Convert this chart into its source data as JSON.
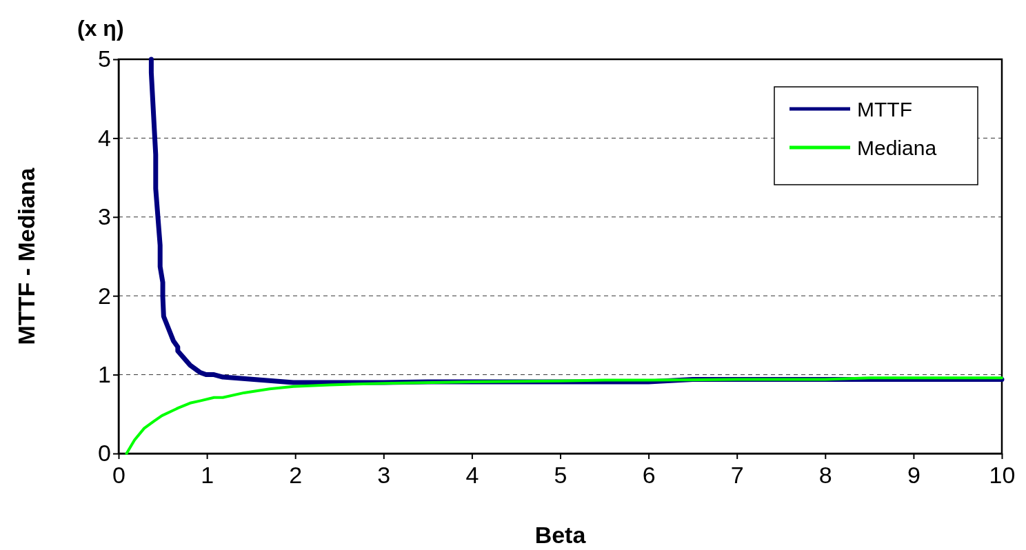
{
  "chart_data": {
    "type": "line",
    "xlabel": "Beta",
    "ylabel": "MTTF - Mediana",
    "annotations": [
      "(x η)"
    ],
    "xlim": [
      0,
      10
    ],
    "ylim": [
      0,
      5
    ],
    "xticks": [
      0,
      1,
      2,
      3,
      4,
      5,
      6,
      7,
      8,
      9,
      10
    ],
    "yticks": [
      0,
      1,
      2,
      3,
      4,
      5
    ],
    "grid": "y",
    "legend": "top right",
    "marker": "none",
    "line_style": "solid",
    "series": [
      {
        "name": "MTTF",
        "color": "#000080",
        "x": [
          0.37,
          0.37,
          0.42,
          0.42,
          0.47,
          0.47,
          0.5,
          0.5,
          0.51,
          0.62,
          0.67,
          0.67,
          0.81,
          0.92,
          0.99,
          1.08,
          1.18,
          1.98,
          2.5,
          3,
          3.5,
          4,
          5,
          6,
          6.5,
          8,
          10
        ],
        "values": [
          5,
          4.83,
          3.79,
          3.36,
          2.64,
          2.37,
          2.17,
          1.99,
          1.74,
          1.43,
          1.35,
          1.3,
          1.12,
          1.03,
          1,
          1,
          0.97,
          0.9,
          0.9,
          0.9,
          0.91,
          0.91,
          0.91,
          0.91,
          0.94,
          0.94,
          0.94
        ]
      },
      {
        "name": "Mediana",
        "color": "#00ff00",
        "x": [
          0.09,
          0.18,
          0.29,
          0.4,
          0.49,
          0.68,
          0.81,
          0.93,
          1.08,
          1.18,
          1.42,
          1.71,
          1.98,
          2.39,
          3,
          4,
          5,
          5.5,
          6,
          7,
          8,
          8.5,
          10
        ],
        "values": [
          0,
          0.17,
          0.32,
          0.41,
          0.48,
          0.58,
          0.64,
          0.67,
          0.71,
          0.71,
          0.77,
          0.82,
          0.85,
          0.87,
          0.89,
          0.91,
          0.92,
          0.93,
          0.93,
          0.94,
          0.94,
          0.96,
          0.96
        ]
      }
    ]
  }
}
